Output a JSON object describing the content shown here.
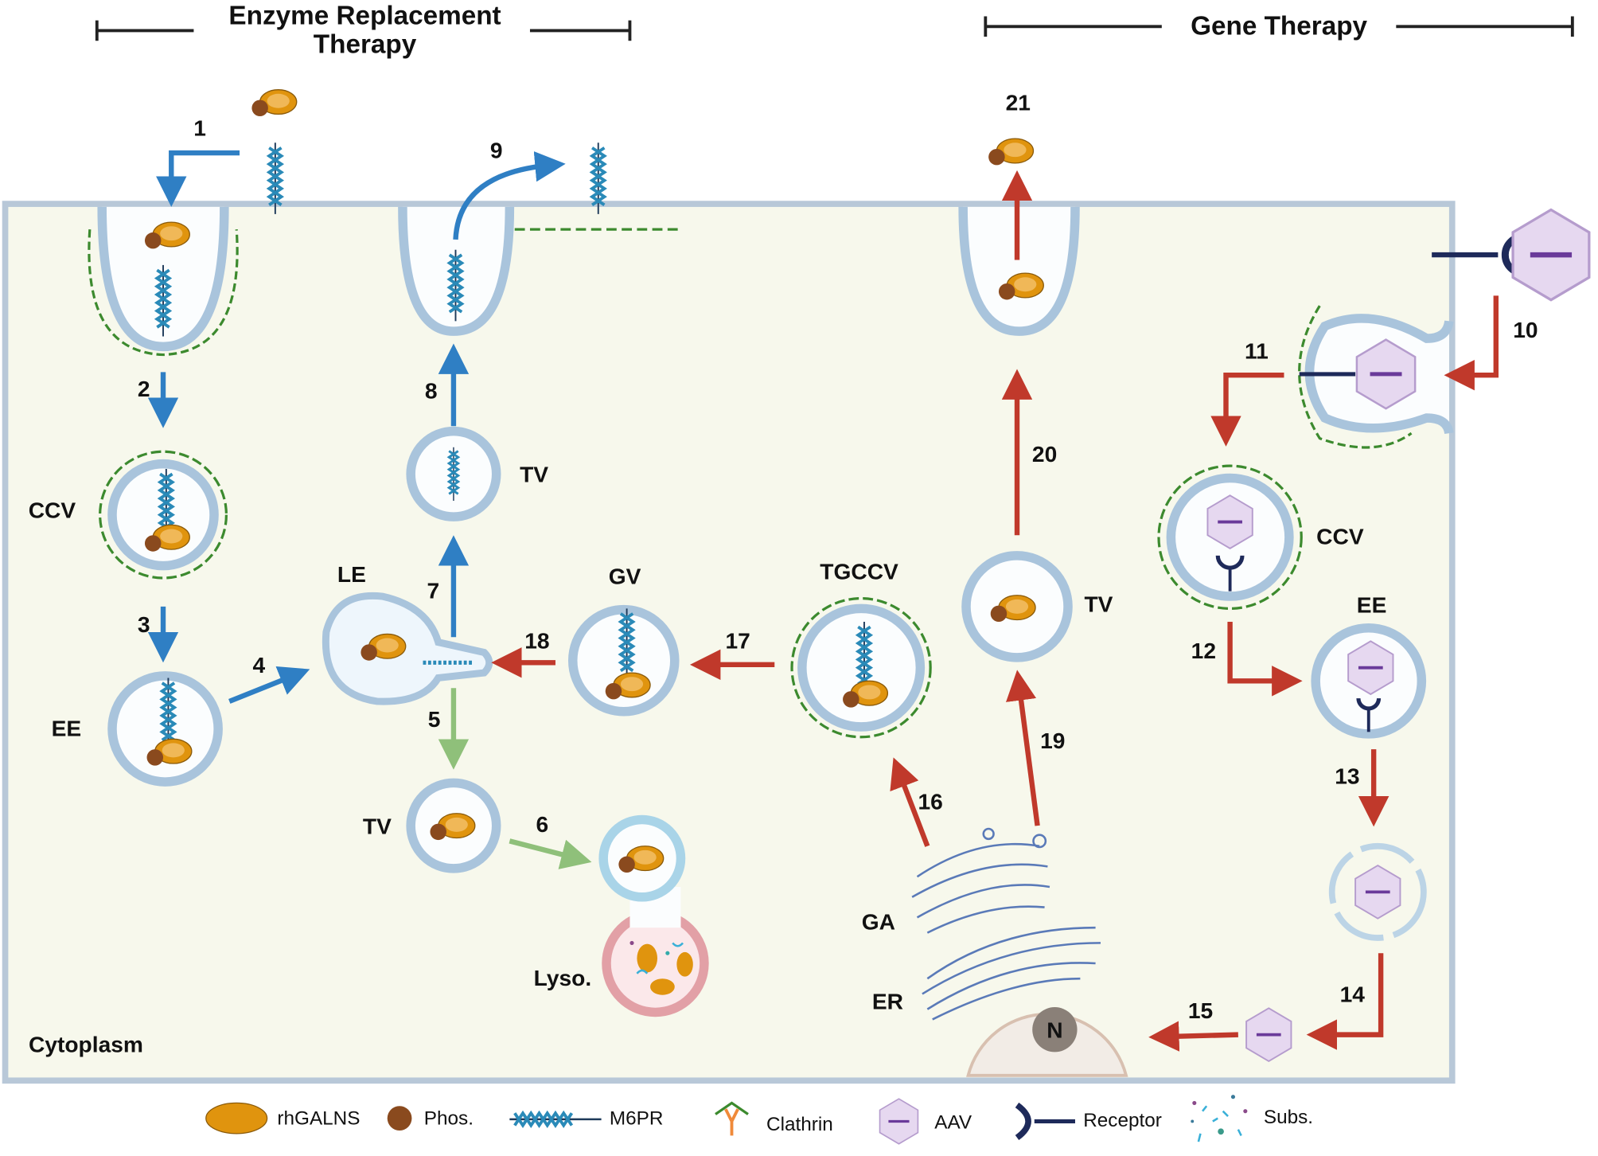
{
  "headers": {
    "ert_line1": "Enzyme Replacement",
    "ert_line2": "Therapy",
    "gene": "Gene Therapy"
  },
  "steps": [
    "1",
    "2",
    "3",
    "4",
    "5",
    "6",
    "7",
    "8",
    "9",
    "10",
    "11",
    "12",
    "13",
    "14",
    "15",
    "16",
    "17",
    "18",
    "19",
    "20",
    "21"
  ],
  "labels": {
    "ccv_left": "CCV",
    "ee_left": "EE",
    "le": "LE",
    "tv_top": "TV",
    "tv_bottom": "TV",
    "lyso": "Lyso.",
    "gv": "GV",
    "tgccv": "TGCCV",
    "tv_right": "TV",
    "ga": "GA",
    "er": "ER",
    "nucleus": "N",
    "ccv_right": "CCV",
    "ee_right": "EE",
    "cytoplasm": "Cytoplasm"
  },
  "legend": [
    {
      "icon": "rhgalns-enzyme-icon",
      "label": "rhGALNS"
    },
    {
      "icon": "phosphate-icon",
      "label": "Phos."
    },
    {
      "icon": "m6pr-icon",
      "label": "M6PR"
    },
    {
      "icon": "clathrin-icon",
      "label": "Clathrin"
    },
    {
      "icon": "aav-icon",
      "label": "AAV"
    },
    {
      "icon": "receptor-icon",
      "label": "Receptor"
    },
    {
      "icon": "substrate-icon",
      "label": "Subs."
    }
  ],
  "colors": {
    "ert_arrow": "#2f7fc4",
    "gene_arrow": "#c0392b",
    "lysosome_arrow": "#8fc07a",
    "cytoplasm": "#f7f8ec",
    "membrane": "#a9c4dc",
    "enzyme": "#e0940e",
    "phosphate": "#8a4a1e",
    "m6pr": "#2a8ab8",
    "clathrin": "#3c8a2e",
    "aav": "#d9c8e8",
    "receptor": "#1e2a5a"
  }
}
